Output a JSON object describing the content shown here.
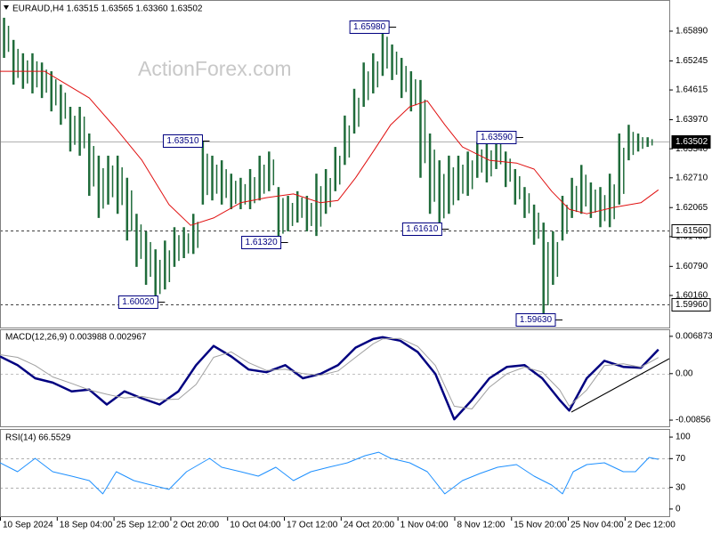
{
  "chart_data": [
    {
      "type": "price",
      "title": "EURAUD,H4  1.63515 1.63565 1.63360 1.63502",
      "watermark": "ActionForex.com",
      "color": "#1f6b3a",
      "xlim": [
        0,
        495
      ],
      "xticks": [
        {
          "value": 0,
          "label": "10 Sep 2024"
        },
        {
          "value": 42,
          "label": "18 Sep 04:00"
        },
        {
          "value": 84,
          "label": "25 Sep 12:00"
        },
        {
          "value": 126,
          "label": "2 Oct 20:00"
        },
        {
          "value": 168,
          "label": "10 Oct 04:00"
        },
        {
          "value": 210,
          "label": "17 Oct 12:00"
        },
        {
          "value": 252,
          "label": "24 Oct 20:00"
        },
        {
          "value": 294,
          "label": "1 Nov 04:00"
        },
        {
          "value": 336,
          "label": "8 Nov 12:00"
        },
        {
          "value": 378,
          "label": "15 Nov 20:00"
        },
        {
          "value": 420,
          "label": "25 Nov 04:00"
        },
        {
          "value": 462,
          "label": "2 Dec 12:00"
        }
      ],
      "ylim": [
        1.59465,
        1.66565
      ],
      "yticks": [
        {
          "value": 1.6589,
          "label": "1.65890"
        },
        1.65245,
        1.64615,
        {
          "value": 1.6397,
          "label": "1.63970"
        },
        {
          "value": 1.6334,
          "label": "1.63340"
        },
        {
          "value": 1.6271,
          "label": "1.62710"
        },
        1.62065,
        1.61435,
        {
          "value": 1.6079,
          "label": "1.60790"
        },
        {
          "value": 1.6016,
          "label": "1.60160"
        }
      ],
      "x": [
        3,
        10,
        17,
        24,
        31,
        38,
        45,
        52,
        59,
        66,
        73,
        80,
        87,
        94,
        101,
        108,
        115,
        122,
        129,
        136,
        143,
        150,
        157,
        164,
        171,
        178,
        185,
        192,
        199,
        206,
        213,
        220,
        227,
        234,
        241,
        248,
        255,
        262,
        269,
        276,
        283,
        290,
        297,
        304,
        311,
        318,
        325,
        332,
        339,
        346,
        353,
        360,
        367,
        374,
        381,
        388,
        395,
        402,
        409,
        416,
        423,
        430,
        437,
        444,
        451,
        458,
        465,
        472,
        479
      ],
      "high": [
        1.6618,
        1.657,
        1.6541,
        1.6541,
        1.6521,
        1.6502,
        1.6473,
        1.6425,
        1.6425,
        1.6367,
        1.6319,
        1.6319,
        1.6319,
        1.6271,
        1.6193,
        1.6155,
        1.6116,
        1.6135,
        1.6164,
        1.6164,
        1.6193,
        1.6351,
        1.6319,
        1.6309,
        1.628,
        1.6271,
        1.629,
        1.6319,
        1.6328,
        1.6251,
        1.6232,
        1.6242,
        1.6232,
        1.628,
        1.629,
        1.6338,
        1.6406,
        1.6464,
        1.6521,
        1.6541,
        1.6598,
        1.656,
        1.6531,
        1.6502,
        1.6483,
        1.6367,
        1.6309,
        1.6319,
        1.6319,
        1.6328,
        1.6348,
        1.6348,
        1.6359,
        1.6328,
        1.629,
        1.6251,
        1.6213,
        1.6174,
        1.6155,
        1.6232,
        1.6271,
        1.6299,
        1.6261,
        1.6251,
        1.628,
        1.6367,
        1.6386,
        1.6367,
        1.6359
      ],
      "low": [
        1.6531,
        1.6473,
        1.6464,
        1.6454,
        1.6444,
        1.6415,
        1.6386,
        1.6328,
        1.6319,
        1.6232,
        1.6184,
        1.6213,
        1.6193,
        1.6135,
        1.6078,
        1.6039,
        1.6002,
        1.6029,
        1.6078,
        1.6097,
        1.6106,
        1.6213,
        1.6222,
        1.6213,
        1.6203,
        1.6203,
        1.6203,
        1.6222,
        1.6242,
        1.6132,
        1.6155,
        1.6174,
        1.6155,
        1.6145,
        1.6193,
        1.6242,
        1.6299,
        1.6367,
        1.6425,
        1.6454,
        1.6492,
        1.6483,
        1.6444,
        1.6415,
        1.6271,
        1.6193,
        1.6161,
        1.6193,
        1.6222,
        1.6232,
        1.6271,
        1.6261,
        1.629,
        1.6251,
        1.6213,
        1.6184,
        1.6126,
        1.5963,
        1.6039,
        1.6135,
        1.6184,
        1.6193,
        1.6184,
        1.6164,
        1.6164,
        1.6213,
        1.6309,
        1.6328,
        1.6338
      ],
      "ma": {
        "color": "#e01010",
        "x": [
          0,
          33,
          66,
          86,
          105,
          125,
          141,
          158,
          178,
          197,
          217,
          237,
          250,
          263,
          276,
          289,
          303,
          316,
          329,
          342,
          362,
          382,
          395,
          408,
          421,
          434,
          454,
          474,
          487
        ],
        "values": [
          1.6502,
          1.6502,
          1.6444,
          1.6377,
          1.6309,
          1.6213,
          1.6168,
          1.6184,
          1.6217,
          1.6228,
          1.6236,
          1.6217,
          1.6222,
          1.6271,
          1.6328,
          1.6386,
          1.6425,
          1.6438,
          1.6386,
          1.6338,
          1.6309,
          1.6303,
          1.629,
          1.6242,
          1.6203,
          1.6193,
          1.6207,
          1.6217,
          1.6245
        ]
      },
      "levels": [
        {
          "value": 1.63502,
          "label": "1.63502",
          "style": "solid",
          "highlight": true
        },
        {
          "value": 1.6156,
          "label": "1.61560",
          "style": "dashed"
        },
        {
          "value": 1.5996,
          "label": "1.59960",
          "style": "dashed"
        }
      ],
      "annotations": [
        {
          "label": "1.65980",
          "value": 1.6598,
          "x": 293
        },
        {
          "label": "1.63510",
          "value": 1.6351,
          "x": 155
        },
        {
          "label": "1.63590",
          "value": 1.6359,
          "x": 387
        },
        {
          "label": "1.61320",
          "value": 1.6132,
          "x": 213
        },
        {
          "label": "1.61610",
          "value": 1.6161,
          "x": 332
        },
        {
          "label": "1.60020",
          "value": 1.6002,
          "x": 122
        },
        {
          "label": "1.59630",
          "value": 1.5963,
          "x": 416
        }
      ]
    },
    {
      "type": "macd",
      "title": "MACD(12,26,9) 0.003988 0.002967",
      "ylim": [
        -0.0097,
        0.008
      ],
      "yticks": [
        0.006873,
        {
          "value": 0,
          "label": "0.00"
        },
        -0.00856
      ],
      "x": [
        0,
        13,
        26,
        39,
        53,
        66,
        79,
        92,
        105,
        118,
        132,
        145,
        158,
        171,
        184,
        197,
        211,
        224,
        237,
        250,
        263,
        276,
        283,
        296,
        309,
        322,
        336,
        349,
        362,
        375,
        388,
        401,
        414,
        421,
        434,
        447,
        461,
        474,
        487
      ],
      "series": [
        {
          "color": "#000080",
          "values": [
            0.00317,
            0.00156,
            -0.00085,
            -0.00166,
            -0.00326,
            -0.00294,
            -0.00568,
            -0.00326,
            -0.00455,
            -0.00568,
            -0.00326,
            0.00156,
            0.0051,
            0.00317,
            0.00076,
            0.00027,
            0.00156,
            -0.00085,
            -5e-05,
            0.00156,
            0.00478,
            0.00638,
            0.00671,
            0.00606,
            0.00397,
            -5e-05,
            -0.00841,
            -0.00487,
            -0.00085,
            0.00124,
            0.00156,
            -0.00085,
            -0.00487,
            -0.0068,
            -0.00085,
            0.00236,
            0.00124,
            0.00108,
            0.00445
          ]
        },
        {
          "color": "#a0a0a0",
          "values": [
            0.0035,
            0.003,
            0.0015,
            -0.0006,
            -0.0018,
            -0.003,
            -0.0038,
            -0.0045,
            -0.0042,
            -0.0048,
            -0.0047,
            -0.002,
            0.003,
            0.004,
            0.002,
            0.0006,
            0.0008,
            0,
            -0.0003,
            0.0005,
            0.003,
            0.0055,
            0.0064,
            0.0065,
            0.005,
            0.0015,
            -0.006,
            -0.0065,
            -0.0025,
            0,
            0.0012,
            0.0003,
            -0.003,
            -0.006,
            -0.003,
            0.0015,
            0.0018,
            0.0012,
            0.00297
          ]
        }
      ]
    },
    {
      "type": "rsi",
      "title": "RSI(14) 66.5529",
      "color": "#1e90ff",
      "ylim": [
        -10,
        110
      ],
      "yticks": [
        0,
        30,
        70,
        100
      ],
      "levels": [
        30,
        70
      ],
      "x": [
        0,
        13,
        26,
        39,
        53,
        66,
        76,
        86,
        99,
        112,
        125,
        138,
        155,
        164,
        178,
        191,
        204,
        217,
        230,
        243,
        257,
        270,
        280,
        289,
        303,
        316,
        329,
        342,
        355,
        368,
        382,
        395,
        408,
        416,
        424,
        434,
        447,
        461,
        470,
        480,
        487
      ],
      "values": [
        64.2,
        51.9,
        70.4,
        51.9,
        45.7,
        39.5,
        21.0,
        51.9,
        39.5,
        33.3,
        27.2,
        51.9,
        70.4,
        58.0,
        51.9,
        45.7,
        58.0,
        39.5,
        51.9,
        58.0,
        64.2,
        74.1,
        79.0,
        70.4,
        64.2,
        51.9,
        21.0,
        39.5,
        49.4,
        58.0,
        61.7,
        45.7,
        33.3,
        21.0,
        51.9,
        61.7,
        64.2,
        51.9,
        51.9,
        71.6,
        69.1
      ]
    }
  ]
}
